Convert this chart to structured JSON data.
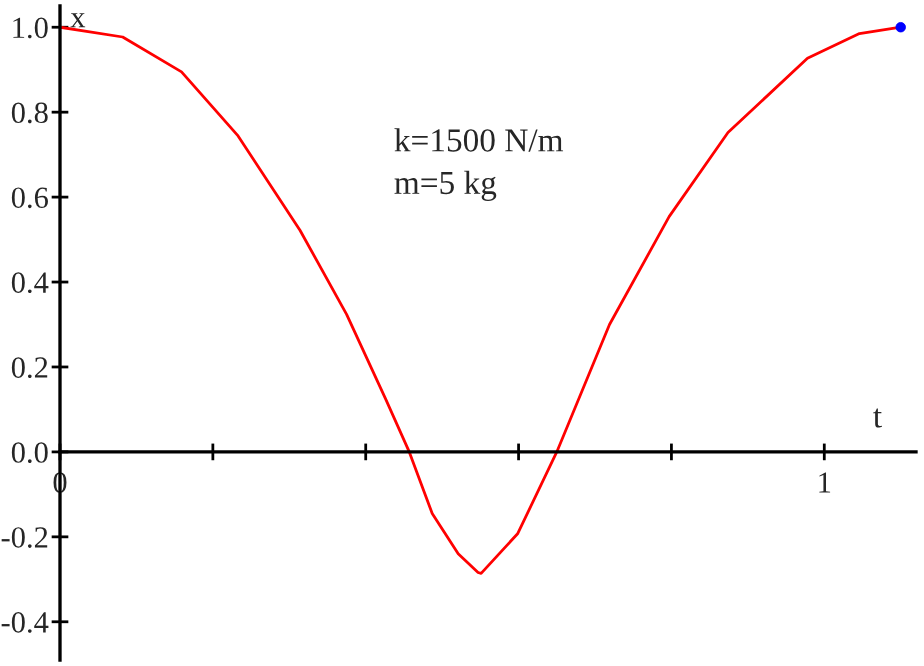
{
  "chart_data": {
    "type": "line",
    "xlabel": "t",
    "ylabel": "x",
    "annotations": [
      "k=1500 N/m",
      "m=5 kg"
    ],
    "xlim": [
      0,
      1.12
    ],
    "ylim": [
      -0.49,
      1.05
    ],
    "xticks": [
      0,
      {
        "value": 0.2,
        "label": null
      },
      {
        "value": 0.4,
        "label": null
      },
      {
        "value": 0.6,
        "label": null
      },
      {
        "value": 0.8,
        "label": null
      },
      1
    ],
    "yticks": [
      {
        "value": -0.4,
        "label": "-0.4"
      },
      {
        "value": -0.2,
        "label": "-0.2"
      },
      {
        "value": 0,
        "label": "0.0"
      },
      {
        "value": 0.2,
        "label": "0.2"
      },
      {
        "value": 0.4,
        "label": "0.4"
      },
      {
        "value": 0.6,
        "label": "0.6"
      },
      {
        "value": 0.8,
        "label": "0.8"
      },
      {
        "value": 1,
        "label": "1.0"
      }
    ],
    "grid": false,
    "series": [
      {
        "color": "#ff0000",
        "marker": "none",
        "line_style": "solid",
        "x": [
          0,
          0.082,
          0.159,
          0.233,
          0.314,
          0.375,
          0.426,
          0.457,
          0.487,
          0.521,
          0.547,
          0.551,
          0.599,
          0.65,
          0.719,
          0.797,
          0.874,
          0.978,
          1.046,
          1.1
        ],
        "values": [
          1.0,
          0.977,
          0.895,
          0.744,
          0.522,
          0.324,
          0.125,
          0,
          -0.145,
          -0.24,
          -0.284,
          -0.286,
          -0.192,
          0,
          0.3,
          0.554,
          0.752,
          0.927,
          0.985,
          1.0
        ]
      },
      {
        "type": "scatter",
        "color": "#0000ff",
        "marker": "circle",
        "x": [
          1.1
        ],
        "values": [
          1.0
        ]
      }
    ]
  }
}
